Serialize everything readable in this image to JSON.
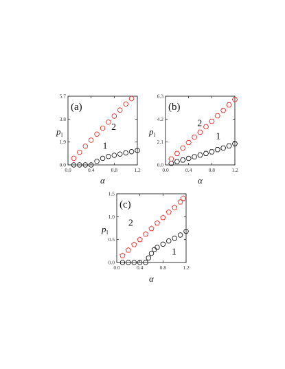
{
  "colors": {
    "series1": "#1a1a1a",
    "series2": "#e8322a",
    "axis": "#222222"
  },
  "chart_data": [
    {
      "type": "scatter",
      "panel_label": "(a)",
      "xlabel": "α",
      "ylabel": "p",
      "ylabel_sub": "l",
      "xlim": [
        0,
        1.2
      ],
      "ylim": [
        0,
        5.7
      ],
      "xticks": [
        "0.0",
        "0.4",
        "0.8",
        "1.2"
      ],
      "xtick_values": [
        0,
        0.4,
        0.8,
        1.2
      ],
      "yticks": [
        "0.0",
        "1.9",
        "3.8",
        "5.7"
      ],
      "ytick_values": [
        0,
        1.9,
        3.8,
        5.7
      ],
      "series": [
        {
          "name": "1",
          "marker": "circle",
          "color": "#1a1a1a",
          "x": [
            0.1,
            0.2,
            0.3,
            0.4,
            0.5,
            0.6,
            0.7,
            0.8,
            0.9,
            1.0,
            1.1,
            1.2
          ],
          "y": [
            0.0,
            0.0,
            0.0,
            0.0,
            0.3,
            0.55,
            0.7,
            0.8,
            0.9,
            1.0,
            1.1,
            1.2
          ]
        },
        {
          "name": "2",
          "marker": "circle",
          "color": "#e8322a",
          "x": [
            0.1,
            0.2,
            0.3,
            0.4,
            0.5,
            0.6,
            0.7,
            0.8,
            0.9,
            1.0,
            1.1
          ],
          "y": [
            0.55,
            1.05,
            1.55,
            2.05,
            2.55,
            3.05,
            3.55,
            4.05,
            4.55,
            5.05,
            5.5
          ]
        }
      ],
      "annotations": [
        {
          "text": "1",
          "x": 0.6,
          "y": 1.35
        },
        {
          "text": "2",
          "x": 0.75,
          "y": 2.9
        }
      ]
    },
    {
      "type": "scatter",
      "panel_label": "(b)",
      "xlabel": "α",
      "ylabel": "p",
      "ylabel_sub": "l",
      "xlim": [
        0,
        1.2
      ],
      "ylim": [
        0,
        6.3
      ],
      "xticks": [
        "0.0",
        "0.4",
        "0.8",
        "1.2"
      ],
      "xtick_values": [
        0,
        0.4,
        0.8,
        1.2
      ],
      "yticks": [
        "0.0",
        "2.1",
        "4.2",
        "6.3"
      ],
      "ytick_values": [
        0,
        2.1,
        4.2,
        6.3
      ],
      "series": [
        {
          "name": "1",
          "marker": "hexagon",
          "color": "#1a1a1a",
          "x": [
            0.1,
            0.2,
            0.3,
            0.4,
            0.5,
            0.6,
            0.7,
            0.8,
            0.9,
            1.0,
            1.1,
            1.2
          ],
          "y": [
            0.15,
            0.3,
            0.45,
            0.6,
            0.75,
            0.9,
            1.05,
            1.2,
            1.4,
            1.55,
            1.75,
            1.95
          ]
        },
        {
          "name": "2",
          "marker": "hexagon",
          "color": "#e8322a",
          "x": [
            0.1,
            0.2,
            0.3,
            0.4,
            0.5,
            0.6,
            0.7,
            0.8,
            0.9,
            1.0,
            1.1,
            1.2
          ],
          "y": [
            0.55,
            1.05,
            1.55,
            2.05,
            2.55,
            3.0,
            3.5,
            4.0,
            4.5,
            5.0,
            5.5,
            6.0
          ]
        }
      ],
      "annotations": [
        {
          "text": "1",
          "x": 0.87,
          "y": 2.35
        },
        {
          "text": "2",
          "x": 0.55,
          "y": 3.55
        }
      ]
    },
    {
      "type": "scatter",
      "panel_label": "(c)",
      "xlabel": "α",
      "ylabel": "p",
      "ylabel_sub": "l",
      "xlim": [
        0,
        1.2
      ],
      "ylim": [
        0,
        1.5
      ],
      "xticks": [
        "0.0",
        "0.4",
        "0.8",
        "1.2"
      ],
      "xtick_values": [
        0,
        0.4,
        0.8,
        1.2
      ],
      "yticks": [
        "0.0",
        "0.5",
        "1.0",
        "1.5"
      ],
      "ytick_values": [
        0,
        0.5,
        1.0,
        1.5
      ],
      "series": [
        {
          "name": "1",
          "marker": "circle",
          "color": "#1a1a1a",
          "x": [
            0.1,
            0.2,
            0.3,
            0.4,
            0.5,
            0.55,
            0.6,
            0.65,
            0.7,
            0.8,
            0.9,
            1.0,
            1.1,
            1.2
          ],
          "y": [
            0.0,
            0.0,
            0.0,
            0.0,
            0.0,
            0.1,
            0.2,
            0.28,
            0.33,
            0.4,
            0.47,
            0.53,
            0.6,
            0.68
          ]
        },
        {
          "name": "2",
          "marker": "pentagon",
          "color": "#e8322a",
          "x": [
            0.1,
            0.2,
            0.3,
            0.4,
            0.5,
            0.6,
            0.7,
            0.8,
            0.9,
            1.0,
            1.1,
            1.15
          ],
          "y": [
            0.15,
            0.27,
            0.39,
            0.5,
            0.62,
            0.74,
            0.86,
            0.98,
            1.1,
            1.2,
            1.32,
            1.4
          ]
        }
      ],
      "annotations": [
        {
          "text": "1",
          "x": 0.95,
          "y": 0.17
        },
        {
          "text": "2",
          "x": 0.2,
          "y": 0.8
        }
      ]
    }
  ]
}
